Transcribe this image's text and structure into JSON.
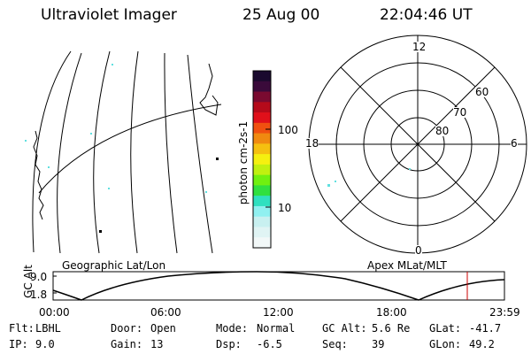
{
  "header": {
    "instrument": "Ultraviolet Imager",
    "date": "25 Aug 00",
    "time": "22:04:46 UT"
  },
  "colorbar": {
    "unit_label": "photon cm-2s-1",
    "tick_labels": [
      "100",
      "10"
    ],
    "colors": [
      "#1a0a2e",
      "#3a0a3a",
      "#7a0a30",
      "#b50a1a",
      "#e0101a",
      "#f05010",
      "#f08a10",
      "#f5c010",
      "#f5f010",
      "#c0f010",
      "#70f010",
      "#30e040",
      "#30e0c0",
      "#90f0f0",
      "#c8f0f0",
      "#e0f4f4",
      "#f2f8f8"
    ]
  },
  "geographic_panel": {
    "label": "Geographic Lat/Lon"
  },
  "polar_panel": {
    "label": "Apex MLat/MLT",
    "mlt_labels": [
      "12",
      "18",
      "6",
      "0"
    ],
    "lat_labels": [
      "60",
      "70",
      "80"
    ]
  },
  "altitude_plot": {
    "ylabel": "GC Alt",
    "ytick_labels": [
      "9.0",
      "1.8"
    ],
    "xtick_labels": [
      "00:00",
      "06:00",
      "12:00",
      "18:00",
      "23:59"
    ],
    "marker_color": "#cc0000"
  },
  "status": {
    "rows": [
      [
        {
          "label": "Flt:",
          "value": "LBHL"
        },
        {
          "label": "Door:",
          "value": "Open"
        },
        {
          "label": "Mode:",
          "value": "Normal"
        },
        {
          "label": "GC Alt:",
          "value": "5.6 Re"
        },
        {
          "label": "GLat:",
          "value": "-41.7"
        }
      ],
      [
        {
          "label": "IP:",
          "value": "9.0"
        },
        {
          "label": "Gain:",
          "value": "13"
        },
        {
          "label": "Dsp:",
          "value": "-6.5"
        },
        {
          "label": "Seq:",
          "value": "39"
        },
        {
          "label": "GLon:",
          "value": "49.2"
        }
      ]
    ]
  }
}
